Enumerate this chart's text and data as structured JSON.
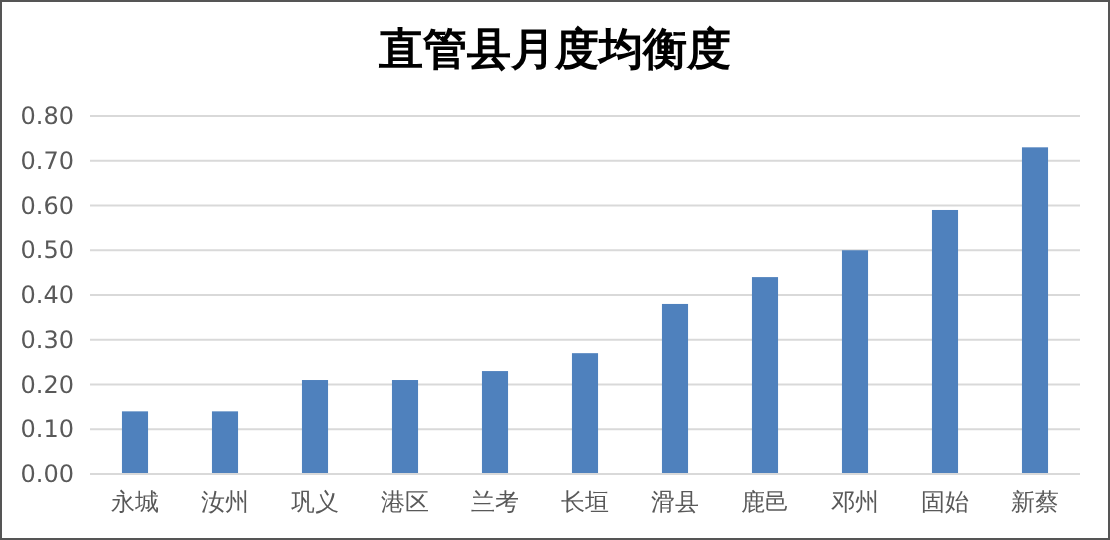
{
  "chart_data": {
    "type": "bar",
    "title": "直管县月度均衡度",
    "categories": [
      "永城",
      "汝州",
      "巩义",
      "港区",
      "兰考",
      "长垣",
      "滑县",
      "鹿邑",
      "邓州",
      "固始",
      "新蔡"
    ],
    "values": [
      0.14,
      0.14,
      0.21,
      0.21,
      0.23,
      0.27,
      0.38,
      0.44,
      0.5,
      0.59,
      0.73
    ],
    "color": "#4f81bd",
    "ylim": [
      0,
      0.8
    ],
    "yticks": [
      {
        "value": 0,
        "label": "0.00"
      },
      {
        "value": 0.1,
        "label": "0.10"
      },
      {
        "value": 0.2,
        "label": "0.20"
      },
      {
        "value": 0.3,
        "label": "0.30"
      },
      {
        "value": 0.4,
        "label": "0.40"
      },
      {
        "value": 0.5,
        "label": "0.50"
      },
      {
        "value": 0.6,
        "label": "0.60"
      },
      {
        "value": 0.7,
        "label": "0.70"
      },
      {
        "value": 0.8,
        "label": "0.80"
      }
    ],
    "grid": "y"
  }
}
